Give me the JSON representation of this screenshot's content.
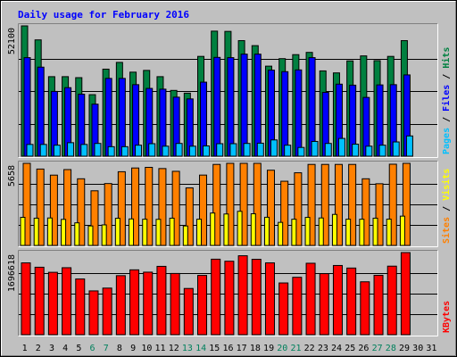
{
  "chart_data": {
    "type": "bar",
    "title": "Daily usage for February 2016",
    "categories": [
      "1",
      "2",
      "3",
      "4",
      "5",
      "6",
      "7",
      "8",
      "9",
      "10",
      "11",
      "12",
      "13",
      "14",
      "15",
      "16",
      "17",
      "18",
      "19",
      "20",
      "21",
      "22",
      "23",
      "24",
      "25",
      "26",
      "27",
      "28",
      "29",
      "30",
      "31"
    ],
    "weekend_days": [
      "6",
      "7",
      "13",
      "14",
      "20",
      "21",
      "27",
      "28"
    ],
    "panels": [
      {
        "id": "hits-files-pages",
        "axis_max_label": "52100",
        "ymax": 52100,
        "right_labels": [
          {
            "text": "Pages",
            "color": "#00c0ff"
          },
          {
            "text": " / ",
            "color": "#000000"
          },
          {
            "text": "Files",
            "color": "#0000ff"
          },
          {
            "text": " / ",
            "color": "#000000"
          },
          {
            "text": "Hits",
            "color": "#008040"
          }
        ],
        "series": [
          {
            "name": "Hits",
            "color": "#008040",
            "values": [
              52100,
              46500,
              31800,
              31800,
              31400,
              24600,
              34800,
              37500,
              33600,
              34300,
              31800,
              26300,
              25200,
              39900,
              50000,
              49900,
              46200,
              44200,
              36000,
              39000,
              40600,
              41500,
              34100,
              33300,
              38100,
              40100,
              38200,
              39900,
              46200,
              0,
              0
            ]
          },
          {
            "name": "Files",
            "color": "#0000ff",
            "values": [
              39400,
              35600,
              25900,
              27400,
              24800,
              20800,
              31100,
              31100,
              28600,
              27100,
              26800,
              23600,
              22900,
              29600,
              39500,
              39400,
              40800,
              40800,
              34400,
              33800,
              34500,
              39400,
              25500,
              28800,
              28400,
              23500,
              28500,
              28600,
              32500,
              0,
              0
            ]
          },
          {
            "name": "Pages",
            "color": "#00c0ff",
            "values": [
              4700,
              4700,
              4400,
              5400,
              4700,
              5100,
              3800,
              3800,
              4400,
              5000,
              4000,
              5100,
              4000,
              4100,
              5000,
              5000,
              5100,
              5200,
              6500,
              4400,
              3500,
              5900,
              5100,
              7100,
              4800,
              4000,
              4400,
              5700,
              8100,
              0,
              0
            ]
          }
        ]
      },
      {
        "id": "visits-sites",
        "axis_max_label": "5658",
        "ymax": 5658,
        "right_labels": [
          {
            "text": "Sites",
            "color": "#ff8000"
          },
          {
            "text": " / ",
            "color": "#000000"
          },
          {
            "text": "Visits",
            "color": "#ffff00"
          }
        ],
        "series": [
          {
            "name": "Visits",
            "color": "#ff8000",
            "values": [
              5658,
              5264,
              4845,
              5227,
              4593,
              3765,
              4264,
              5079,
              5337,
              5381,
              5297,
              5107,
              3965,
              4848,
              5583,
              5658,
              5658,
              5658,
              5183,
              4424,
              5007,
              5583,
              5583,
              5583,
              5583,
              4593,
              4252,
              5597,
              5658,
              0,
              0
            ]
          },
          {
            "name": "Sites",
            "color": "#ffff00",
            "values": [
              1936,
              1878,
              1893,
              1796,
              1557,
              1344,
              1416,
              1872,
              1827,
              1806,
              1799,
              1878,
              1343,
              1807,
              2234,
              2167,
              2351,
              2183,
              1942,
              1589,
              1806,
              1934,
              1893,
              2138,
              1807,
              1806,
              1878,
              1812,
              2020,
              0,
              0
            ]
          }
        ]
      },
      {
        "id": "kbytes",
        "axis_max_label": "1696618",
        "ymax": 1696618,
        "right_labels": [
          {
            "text": "KBytes",
            "color": "#ff0000"
          }
        ],
        "series": [
          {
            "name": "KBytes",
            "color": "#ff0000",
            "values": [
              1484000,
              1394000,
              1289000,
              1384000,
              1151000,
              905000,
              963000,
              1220000,
              1340000,
              1292000,
              1412000,
              1265000,
              955000,
              1225000,
              1560000,
              1518000,
              1631000,
              1558000,
              1484000,
              1069000,
              1186000,
              1476000,
              1262000,
              1430000,
              1377000,
              1093000,
              1227000,
              1416000,
              1696618,
              0,
              0
            ]
          }
        ]
      }
    ]
  }
}
